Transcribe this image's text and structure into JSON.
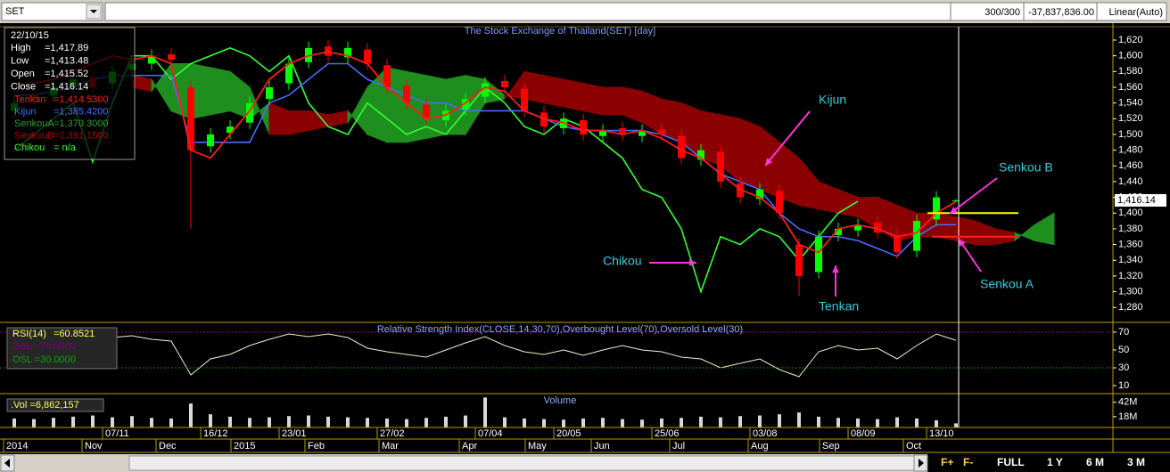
{
  "toolbar": {
    "symbol": "SET",
    "count": "300/300",
    "value": "-37,837,836.00",
    "scale": "Linear(Auto)"
  },
  "info_box": {
    "date": "22/10/15",
    "ohlc": [
      {
        "label": "High",
        "value": "=1,417.89"
      },
      {
        "label": "Low",
        "value": "=1,413.48"
      },
      {
        "label": "Open",
        "value": "=1,415.52"
      },
      {
        "label": "Close",
        "value": "=1,416.14"
      }
    ]
  },
  "annotations": [
    "Kijun",
    "Senkou B",
    "Chikou",
    "Tenkan",
    "Senkou A"
  ],
  "x_axis_months": [
    "2014",
    "Nov",
    "Dec",
    "2015",
    "Feb",
    "Mar",
    "Apr",
    "May",
    "Jun",
    "Jul",
    "Aug",
    "Sep",
    "Oct"
  ],
  "buttons": [
    "F+",
    "F-",
    "FULL",
    "1 Y",
    "6 M",
    "3 M"
  ],
  "chart_data": [
    {
      "type": "candlestick",
      "title": "The Stock Exchange of Thailand(SET) [day]",
      "categories": [
        null,
        null,
        null,
        null,
        null,
        "07/11",
        null,
        null,
        null,
        null,
        "16/12",
        null,
        null,
        null,
        "23/01",
        null,
        null,
        null,
        null,
        "27/02",
        null,
        null,
        null,
        null,
        "07/04",
        null,
        null,
        null,
        "20/05",
        null,
        null,
        null,
        null,
        "25/06",
        null,
        null,
        null,
        null,
        "03/08",
        null,
        null,
        null,
        null,
        "08/09",
        null,
        null,
        null,
        "13/10",
        null,
        null,
        null,
        null,
        null,
        null
      ],
      "open": [
        1530,
        1550,
        1550,
        1562,
        1572,
        1565,
        1582,
        1590,
        1602,
        1560,
        1485,
        1502,
        1515,
        1545,
        1565,
        1592,
        1612,
        1598,
        1608,
        1588,
        1562,
        1538,
        1518,
        1532,
        1548,
        1568,
        1558,
        1528,
        1508,
        1518,
        1498,
        1508,
        1498,
        1506,
        1498,
        1468,
        1478,
        1438,
        1418,
        1428,
        1360,
        1325,
        1372,
        1378,
        1388,
        1372,
        1352,
        1392,
        1415.52,
        null,
        null,
        null,
        null,
        null
      ],
      "high": [
        1548,
        1558,
        1568,
        1578,
        1580,
        1588,
        1598,
        1608,
        1610,
        1568,
        1508,
        1518,
        1548,
        1568,
        1598,
        1618,
        1620,
        1618,
        1616,
        1596,
        1570,
        1546,
        1538,
        1553,
        1573,
        1576,
        1566,
        1536,
        1528,
        1526,
        1513,
        1516,
        1513,
        1514,
        1506,
        1488,
        1486,
        1446,
        1438,
        1436,
        1368,
        1378,
        1388,
        1393,
        1396,
        1380,
        1398,
        1428,
        1417.89,
        null,
        null,
        null,
        null,
        null
      ],
      "low": [
        1522,
        1537,
        1542,
        1554,
        1552,
        1557,
        1574,
        1582,
        1587,
        1380,
        1477,
        1494,
        1507,
        1537,
        1557,
        1584,
        1592,
        1590,
        1582,
        1552,
        1532,
        1512,
        1510,
        1524,
        1540,
        1552,
        1522,
        1502,
        1500,
        1492,
        1490,
        1492,
        1490,
        1492,
        1462,
        1460,
        1432,
        1412,
        1410,
        1392,
        1295,
        1317,
        1364,
        1370,
        1367,
        1342,
        1344,
        1384,
        1413.48,
        null,
        null,
        null,
        null,
        null
      ],
      "close": [
        1540,
        1545,
        1560,
        1570,
        1560,
        1580,
        1590,
        1600,
        1595,
        1480,
        1500,
        1510,
        1540,
        1560,
        1590,
        1610,
        1600,
        1610,
        1590,
        1560,
        1540,
        1520,
        1530,
        1545,
        1565,
        1560,
        1530,
        1510,
        1520,
        1500,
        1505,
        1500,
        1505,
        1500,
        1470,
        1480,
        1440,
        1420,
        1430,
        1400,
        1320,
        1370,
        1380,
        1385,
        1375,
        1350,
        1390,
        1420,
        1416.14,
        null,
        null,
        null,
        null,
        null
      ],
      "up_color": "#00ff00",
      "down_color": "#ff0000",
      "series": [
        {
          "name": "Tenkan",
          "legend_value": "=1,414.5300",
          "color": "#ff1a1a",
          "values": [
            1560,
            1565,
            1570,
            1580,
            1590,
            1600,
            1595,
            1600,
            1590,
            1480,
            1470,
            1500,
            1530,
            1570,
            1590,
            1600,
            1605,
            1600,
            1590,
            1560,
            1540,
            1520,
            1525,
            1540,
            1560,
            1555,
            1530,
            1520,
            1515,
            1505,
            1505,
            1500,
            1505,
            1495,
            1480,
            1470,
            1450,
            1430,
            1420,
            1400,
            1360,
            1350,
            1380,
            1385,
            1380,
            1370,
            1375,
            1400,
            1414.53,
            null,
            null,
            null,
            null,
            null
          ]
        },
        {
          "name": "Kijun",
          "legend_value": "=1,385.4200",
          "color": "#4a6cff",
          "values": [
            1550,
            1550,
            1555,
            1560,
            1570,
            1575,
            1575,
            1575,
            1575,
            1490,
            1490,
            1490,
            1490,
            1540,
            1550,
            1570,
            1590,
            1590,
            1570,
            1560,
            1550,
            1540,
            1540,
            1530,
            1530,
            1530,
            1530,
            1520,
            1510,
            1505,
            1505,
            1505,
            1505,
            1500,
            1490,
            1470,
            1450,
            1440,
            1430,
            1400,
            1380,
            1370,
            1370,
            1365,
            1355,
            1345,
            1370,
            1385,
            1385.42,
            null,
            null,
            null,
            null,
            null
          ]
        },
        {
          "name": "SenkouA",
          "legend_value": "=1,370.3000",
          "color": "#2ea02e",
          "values": [
            null,
            null,
            null,
            null,
            null,
            null,
            1560,
            1555,
            1590,
            1590,
            1585,
            1580,
            1560,
            1500,
            1500,
            1505,
            1510,
            1515,
            1560,
            1585,
            1580,
            1575,
            1570,
            1575,
            1570,
            1550,
            1545,
            1540,
            1535,
            1530,
            1525,
            1525,
            1515,
            1500,
            1490,
            1470,
            1460,
            1440,
            1430,
            1420,
            1410,
            1405,
            1400,
            1395,
            1380,
            1365,
            1370,
            1370,
            1365,
            1360,
            1360,
            1365,
            1385,
            1400
          ]
        },
        {
          "name": "SenkouB",
          "legend_value": "=1,391.1500",
          "color": "#b00000",
          "values": [
            null,
            null,
            null,
            null,
            null,
            null,
            1575,
            1570,
            1530,
            1520,
            1525,
            1530,
            1520,
            1540,
            1530,
            1530,
            1525,
            1530,
            1500,
            1490,
            1490,
            1495,
            1500,
            1500,
            1540,
            1545,
            1580,
            1575,
            1570,
            1565,
            1560,
            1560,
            1555,
            1545,
            1540,
            1530,
            1525,
            1520,
            1510,
            1490,
            1470,
            1440,
            1430,
            1420,
            1420,
            1410,
            1400,
            1400,
            1395,
            1390,
            1380,
            1375,
            1365,
            1360
          ]
        },
        {
          "name": "Chikou",
          "legend_value": "= n/a",
          "color": "#33ff33",
          "values": [
            1480,
            1500,
            1520,
            1540,
            1465,
            1540,
            1600,
            1600,
            1570,
            1590,
            1600,
            1610,
            1600,
            1580,
            1600,
            1540,
            1510,
            1500,
            1540,
            1520,
            1500,
            1510,
            1500,
            1530,
            1560,
            1540,
            1510,
            1500,
            1520,
            1510,
            1490,
            1470,
            1430,
            1420,
            1380,
            1300,
            1370,
            1360,
            1380,
            1370,
            1340,
            1370,
            1400,
            1415,
            null,
            null,
            null,
            null,
            null,
            null,
            null,
            null,
            null,
            null
          ]
        }
      ],
      "cloud_up_color": "#1e8f1e",
      "cloud_down_color": "#8b0000",
      "level_lines": [
        {
          "value": 1400,
          "color": "#ffff00"
        },
        {
          "value": 1370,
          "color": "#ff2020"
        }
      ],
      "last_price_label": "1,416.14",
      "ylim": [
        1261,
        1637
      ],
      "yticks": [
        {
          "value": 1280,
          "label": "1,280"
        },
        {
          "value": 1300,
          "label": "1,300"
        },
        {
          "value": 1320,
          "label": "1,320"
        },
        {
          "value": 1340,
          "label": "1,340"
        },
        {
          "value": 1360,
          "label": "1,360"
        },
        {
          "value": 1380,
          "label": "1,380"
        },
        {
          "value": 1400,
          "label": "1,400"
        },
        {
          "value": 1420,
          "label": "1,420"
        },
        {
          "value": 1440,
          "label": "1,440"
        },
        {
          "value": 1460,
          "label": "1,460"
        },
        {
          "value": 1480,
          "label": "1,480"
        },
        {
          "value": 1500,
          "label": "1,500"
        },
        {
          "value": 1520,
          "label": "1,520"
        },
        {
          "value": 1540,
          "label": "1,540"
        },
        {
          "value": 1560,
          "label": "1,560"
        },
        {
          "value": 1580,
          "label": "1,580"
        },
        {
          "value": 1600,
          "label": "1,600"
        },
        {
          "value": 1620,
          "label": "1,620"
        }
      ]
    },
    {
      "type": "line",
      "title": "Relative Strength Index(CLOSE,14,30,70),Overbought Level(70),Oversold Level(30)",
      "series": [
        {
          "name": "RSI(14)",
          "legend_value": "=60.8521",
          "color": "#f0f0c8",
          "values": [
            55,
            58,
            60,
            62,
            60,
            64,
            66,
            62,
            60,
            22,
            40,
            45,
            55,
            62,
            68,
            65,
            68,
            64,
            52,
            48,
            45,
            42,
            50,
            58,
            65,
            55,
            48,
            45,
            50,
            44,
            50,
            55,
            50,
            48,
            42,
            40,
            30,
            35,
            40,
            28,
            20,
            48,
            55,
            50,
            52,
            40,
            55,
            68,
            60.8521,
            null,
            null,
            null,
            null,
            null
          ]
        }
      ],
      "overbought": 70,
      "oversold": 30,
      "overbought_label": "OBL =70.0000",
      "oversold_label": "OSL =30.0000",
      "ylim": [
        2,
        78
      ],
      "yticks": [
        70,
        50,
        30,
        10
      ]
    },
    {
      "type": "bar",
      "title": "Volume",
      "legend_label": ".Vol =6,862,157",
      "color": "#d8d8d8",
      "values": [
        15,
        14,
        16,
        18,
        20,
        17,
        19,
        16,
        15,
        40,
        22,
        18,
        16,
        17,
        19,
        20,
        18,
        17,
        16,
        15,
        14,
        16,
        18,
        20,
        50,
        17,
        15,
        14,
        13,
        15,
        16,
        14,
        13,
        15,
        16,
        18,
        17,
        19,
        20,
        22,
        25,
        18,
        16,
        15,
        14,
        17,
        15,
        12,
        6.86,
        null,
        null,
        null,
        null,
        null
      ],
      "ylim": [
        0,
        55
      ],
      "yticks": [
        {
          "value": 42,
          "label": "42M"
        },
        {
          "value": 18,
          "label": "18M"
        }
      ]
    }
  ]
}
